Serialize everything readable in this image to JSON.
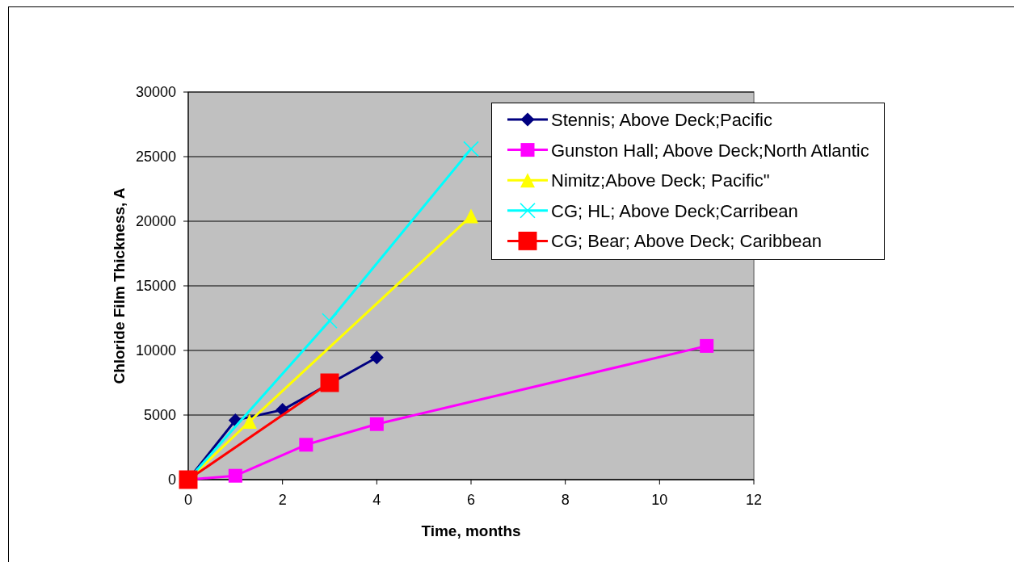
{
  "chart_data": {
    "type": "line",
    "xlabel": "Time, months",
    "ylabel": "Chloride Film Thickness, A",
    "xlim": [
      0,
      12
    ],
    "ylim": [
      0,
      30000
    ],
    "xticks": [
      0,
      2,
      4,
      6,
      8,
      10,
      12
    ],
    "yticks": [
      0,
      5000,
      10000,
      15000,
      20000,
      25000,
      30000
    ],
    "grid": "y",
    "legend": "top right",
    "line_style": "solid",
    "series": [
      {
        "name": "Stennis; Above Deck;Pacific",
        "color": "#000080",
        "marker": "diamond",
        "x": [
          0,
          1,
          2,
          4
        ],
        "values": [
          0,
          4600,
          5400,
          9450
        ]
      },
      {
        "name": "Gunston Hall; Above Deck;North Atlantic",
        "color": "#ff00ff",
        "marker": "square",
        "x": [
          0,
          1,
          2.5,
          4,
          11
        ],
        "values": [
          0,
          300,
          2700,
          4300,
          10350
        ]
      },
      {
        "name": "Nimitz;Above Deck; Pacific\"",
        "color": "#ffff00",
        "marker": "triangle",
        "x": [
          0,
          1.3,
          6
        ],
        "values": [
          0,
          4500,
          20400
        ]
      },
      {
        "name": "CG; HL; Above Deck;Carribean",
        "color": "#00ffff",
        "marker": "cross",
        "x": [
          0,
          3,
          6
        ],
        "values": [
          0,
          12300,
          25600
        ]
      },
      {
        "name": "CG; Bear; Above Deck; Caribbean",
        "color": "#ff0000",
        "marker": "square",
        "x": [
          0,
          3
        ],
        "values": [
          0,
          7500
        ]
      }
    ]
  }
}
